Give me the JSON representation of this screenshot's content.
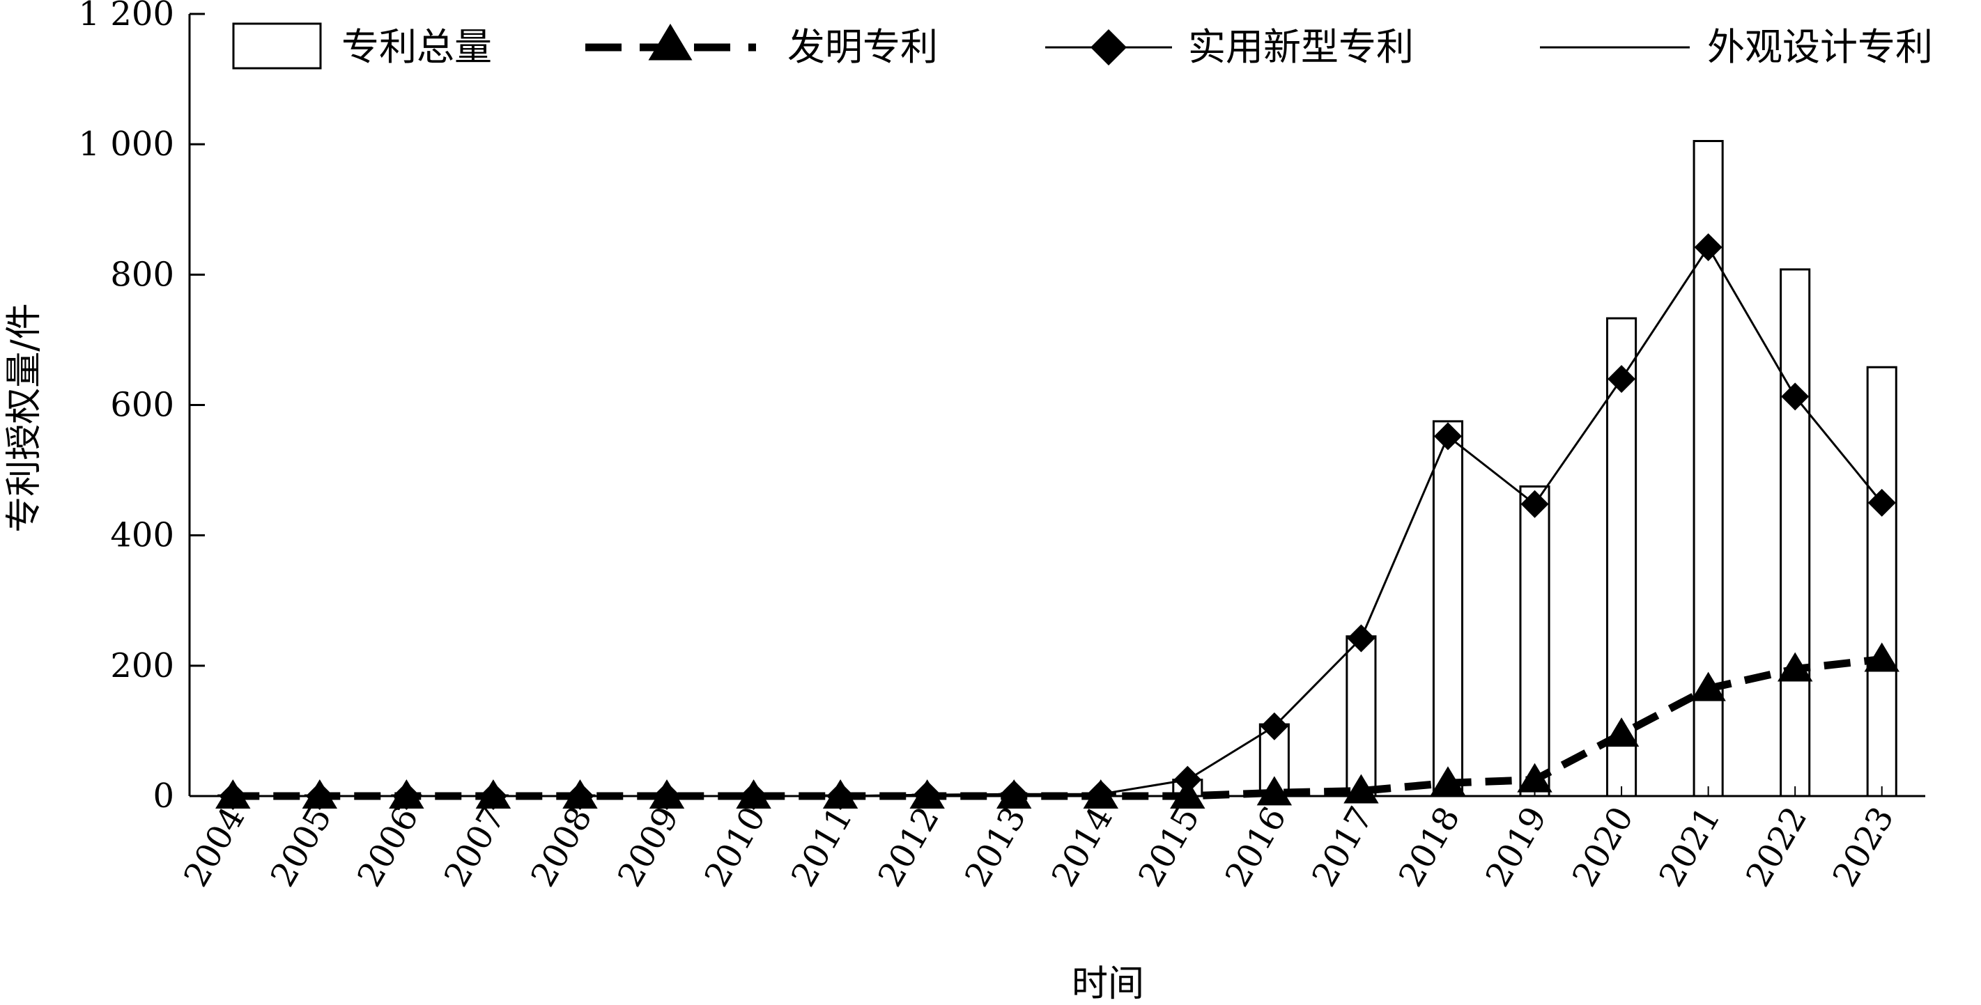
{
  "chart_data": {
    "type": "bar",
    "xlabel": "时间",
    "ylabel": "专利授权量/件",
    "ylim": [
      0,
      1200
    ],
    "yticks": [
      0,
      200,
      400,
      600,
      800,
      1000,
      1200
    ],
    "ytick_labels": [
      "0",
      "200",
      "400",
      "600",
      "800",
      "1 000",
      "1 200"
    ],
    "grid": false,
    "legend_position": "top",
    "categories": [
      "2004",
      "2005",
      "2006",
      "2007",
      "2008",
      "2009",
      "2010",
      "2011",
      "2012",
      "2013",
      "2014",
      "2015",
      "2016",
      "2017",
      "2018",
      "2019",
      "2020",
      "2021",
      "2022",
      "2023"
    ],
    "series": [
      {
        "name": "专利总量",
        "type": "bar",
        "values": [
          1,
          1,
          1,
          1,
          1,
          1,
          1,
          1,
          2,
          3,
          4,
          25,
          110,
          245,
          575,
          475,
          733,
          1005,
          808,
          658
        ]
      },
      {
        "name": "发明专利",
        "type": "line",
        "style": "dashed",
        "marker": "triangle",
        "values": [
          0,
          0,
          0,
          0,
          0,
          0,
          0,
          0,
          0,
          0,
          0,
          0,
          5,
          8,
          20,
          25,
          95,
          165,
          195,
          210
        ]
      },
      {
        "name": "实用新型专利",
        "type": "line",
        "style": "solid",
        "marker": "diamond",
        "values": [
          0,
          0,
          0,
          0,
          0,
          0,
          0,
          0,
          2,
          3,
          3,
          25,
          107,
          242,
          552,
          448,
          640,
          842,
          613,
          450
        ]
      },
      {
        "name": "外观设计专利",
        "type": "line",
        "style": "solid",
        "marker": "none",
        "values": [
          0,
          0,
          0,
          0,
          0,
          0,
          0,
          0,
          0,
          0,
          0,
          0,
          0,
          0,
          0,
          0,
          0,
          0,
          0,
          0
        ]
      }
    ]
  }
}
